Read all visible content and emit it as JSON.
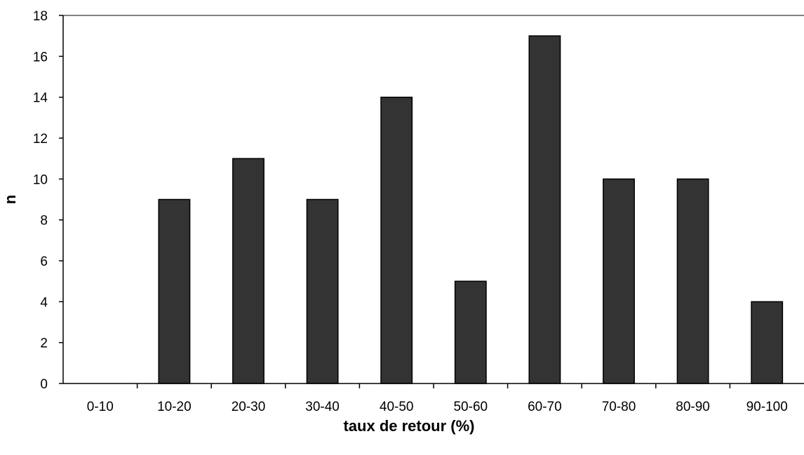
{
  "chart_data": {
    "type": "bar",
    "title": "",
    "xlabel": "taux de retour (%)",
    "ylabel": "n",
    "categories": [
      "0-10",
      "10-20",
      "20-30",
      "30-40",
      "40-50",
      "50-60",
      "60-70",
      "70-80",
      "80-90",
      "90-100"
    ],
    "values": [
      0,
      9,
      11,
      9,
      14,
      5,
      17,
      10,
      10,
      4
    ],
    "ylim": [
      0,
      18
    ],
    "yticks": [
      "0",
      "2",
      "4",
      "6",
      "8",
      "10",
      "12",
      "14",
      "16",
      "18"
    ],
    "grid": false,
    "legend": "none",
    "bar_color": "#333333",
    "bar_edge_color": "#000000"
  }
}
